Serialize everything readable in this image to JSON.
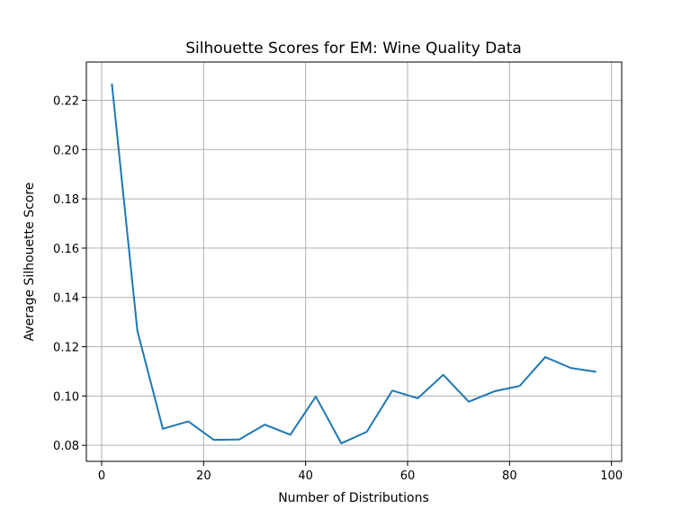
{
  "chart_data": {
    "type": "line",
    "title": "Silhouette Scores for EM: Wine Quality Data",
    "xlabel": "Number of Distributions",
    "ylabel": "Average Silhouette Score",
    "xlim": [
      -3,
      102
    ],
    "ylim": [
      0.0735,
      0.2355
    ],
    "xticks": [
      0,
      20,
      40,
      60,
      80,
      100
    ],
    "xtick_labels": [
      "0",
      "20",
      "40",
      "60",
      "80",
      "100"
    ],
    "yticks": [
      0.08,
      0.1,
      0.12,
      0.14,
      0.16,
      0.18,
      0.2,
      0.22
    ],
    "ytick_labels": [
      "0.08",
      "0.10",
      "0.12",
      "0.14",
      "0.16",
      "0.18",
      "0.20",
      "0.22"
    ],
    "grid": true,
    "line_color": "#1f77b4",
    "series": [
      {
        "x": [
          2,
          7,
          12,
          17,
          22,
          27,
          32,
          37,
          42,
          47,
          52,
          57,
          62,
          67,
          72,
          77,
          82,
          87,
          92,
          97
        ],
        "values": [
          0.2268,
          0.1265,
          0.0867,
          0.0897,
          0.0822,
          0.0824,
          0.0884,
          0.0843,
          0.0998,
          0.0808,
          0.0855,
          0.1022,
          0.0991,
          0.1086,
          0.0977,
          0.1019,
          0.1041,
          0.1158,
          0.1114,
          0.1098
        ]
      }
    ]
  }
}
